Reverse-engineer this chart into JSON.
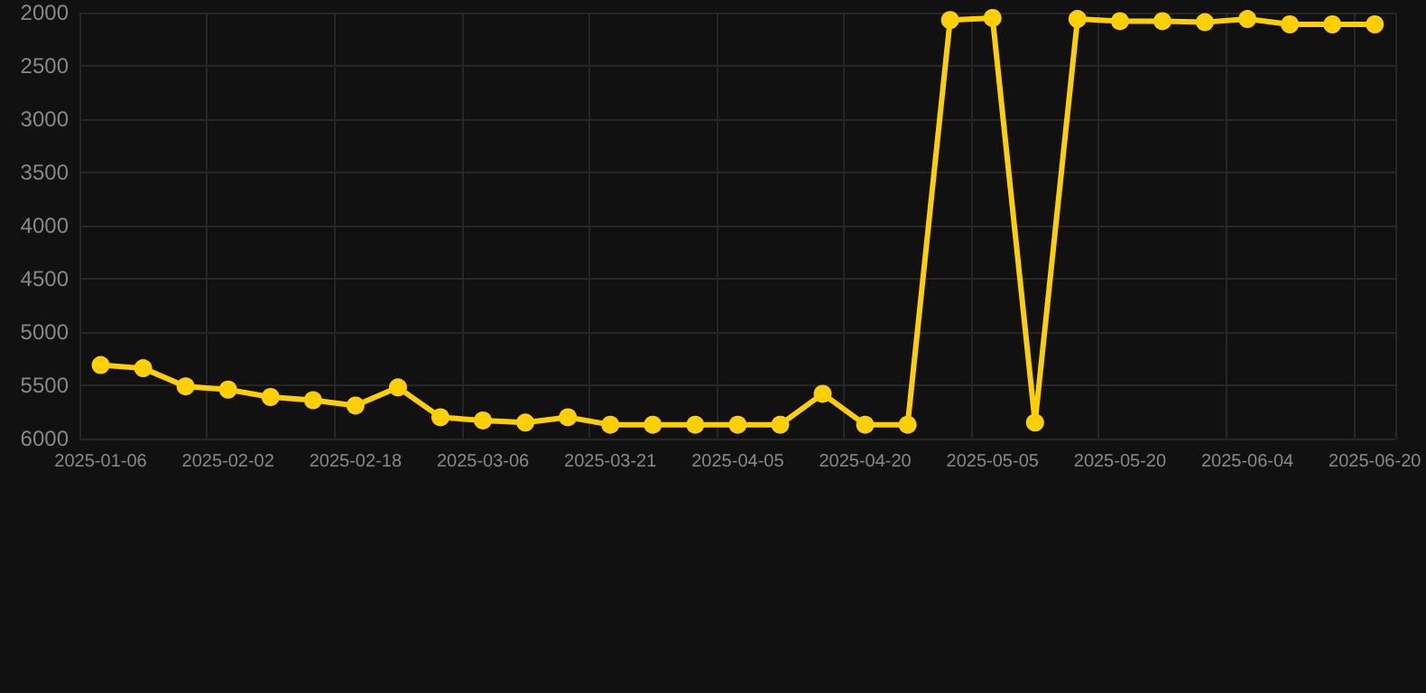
{
  "chart_data": {
    "type": "line",
    "categories": [
      "2025-01-06",
      null,
      null,
      "2025-02-02",
      null,
      null,
      "2025-02-18",
      null,
      null,
      "2025-03-06",
      null,
      null,
      "2025-03-21",
      null,
      null,
      "2025-04-05",
      null,
      null,
      "2025-04-20",
      null,
      null,
      "2025-05-05",
      null,
      null,
      "2025-05-20",
      null,
      null,
      "2025-06-04",
      null,
      null,
      "2025-06-20"
    ],
    "series": [
      {
        "color": "#ffd000",
        "values": [
          5310,
          5340,
          5510,
          5540,
          5610,
          5640,
          5690,
          5520,
          5800,
          5830,
          5850,
          5800,
          5870,
          5870,
          5870,
          5870,
          5870,
          5580,
          5870,
          5870,
          2070,
          2050,
          5850,
          2060,
          2080,
          2080,
          2090,
          2060,
          2110,
          2110,
          2110
        ]
      }
    ],
    "ylim": [
      6000,
      2000
    ],
    "yticks": [
      2000,
      2500,
      3000,
      3500,
      4000,
      4500,
      5000,
      5500,
      6000
    ],
    "grid": true,
    "marker": "circle",
    "line_style": "solid"
  }
}
